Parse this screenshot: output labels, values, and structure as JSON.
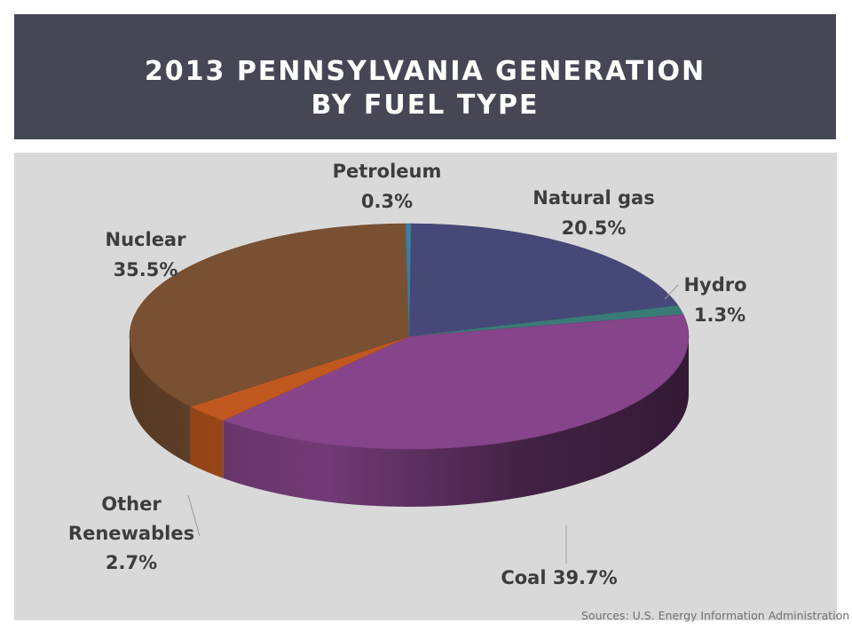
{
  "header": {
    "title_line1": "2013 PENNSYLVANIA GENERATION",
    "title_line2": "BY FUEL TYPE"
  },
  "source_note": "Sources: U.S. Energy Information Administration",
  "chart_data": {
    "type": "pie",
    "style": "3d",
    "title": "2013 PENNSYLVANIA GENERATION BY FUEL TYPE",
    "unit": "%",
    "slices": [
      {
        "name": "Natural gas",
        "value": 20.5,
        "color": "#464878",
        "label": "Natural gas",
        "value_label": "20.5%"
      },
      {
        "name": "Hydro",
        "value": 1.3,
        "color": "#3a7b78",
        "label": "Hydro",
        "value_label": "1.3%"
      },
      {
        "name": "Coal",
        "value": 39.7,
        "color": "#86448a",
        "label": "Coal",
        "value_label": "39.7%"
      },
      {
        "name": "Other Renewables",
        "value": 2.7,
        "color": "#c1581f",
        "label": "Other Renewables",
        "value_label": "2.7%"
      },
      {
        "name": "Nuclear",
        "value": 35.5,
        "color": "#7a5032",
        "label": "Nuclear",
        "value_label": "35.5%"
      },
      {
        "name": "Petroleum",
        "value": 0.3,
        "color": "#3d7fa0",
        "label": "Petroleum",
        "value_label": "0.3%"
      }
    ]
  }
}
